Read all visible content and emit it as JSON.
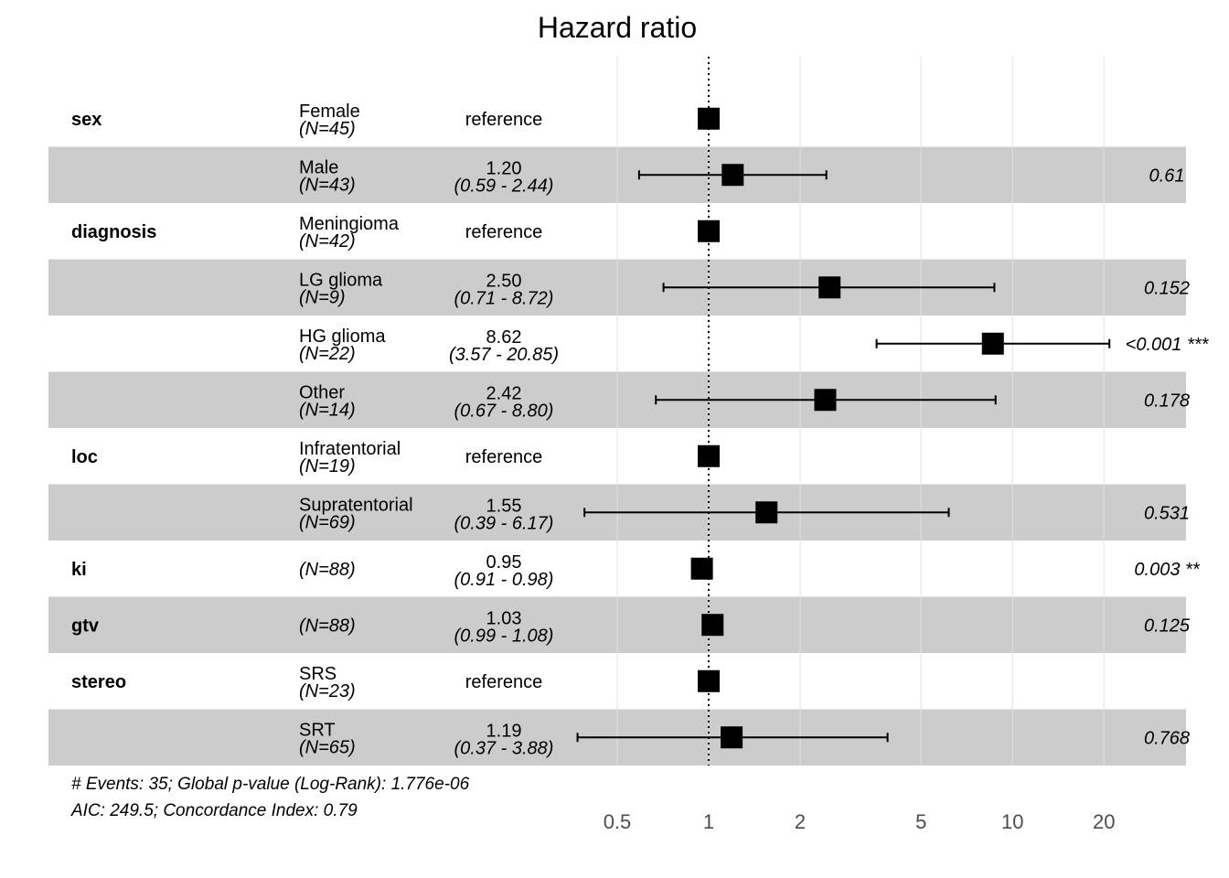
{
  "chart_data": {
    "type": "forest",
    "title": "Hazard ratio",
    "x_scale": "log",
    "xlim": [
      0.37,
      33
    ],
    "x_ticks": [
      0.5,
      1,
      2,
      5,
      10,
      20
    ],
    "x_tick_labels": [
      "0.5",
      "1",
      "2",
      "5",
      "10",
      "20"
    ],
    "reference_line": 1,
    "rows": [
      {
        "variable": "sex",
        "level": "Female",
        "n": "(N=45)",
        "hr": 1.0,
        "hr_text": "reference",
        "ci_text": "",
        "lower": null,
        "upper": null,
        "p_text": ""
      },
      {
        "variable": "",
        "level": "Male",
        "n": "(N=43)",
        "hr": 1.2,
        "hr_text": "1.20",
        "ci_text": "(0.59 -  2.44)",
        "lower": 0.59,
        "upper": 2.44,
        "p_text": "0.61"
      },
      {
        "variable": "diagnosis",
        "level": "Meningioma",
        "n": "(N=42)",
        "hr": 1.0,
        "hr_text": "reference",
        "ci_text": "",
        "lower": null,
        "upper": null,
        "p_text": ""
      },
      {
        "variable": "",
        "level": "LG glioma",
        "n": "(N=9)",
        "hr": 2.5,
        "hr_text": "2.50",
        "ci_text": "(0.71 -  8.72)",
        "lower": 0.71,
        "upper": 8.72,
        "p_text": "0.152"
      },
      {
        "variable": "",
        "level": "HG glioma",
        "n": "(N=22)",
        "hr": 8.62,
        "hr_text": "8.62",
        "ci_text": "(3.57 - 20.85)",
        "lower": 3.57,
        "upper": 20.85,
        "p_text": "<0.001 ***"
      },
      {
        "variable": "",
        "level": "Other",
        "n": "(N=14)",
        "hr": 2.42,
        "hr_text": "2.42",
        "ci_text": "(0.67 -  8.80)",
        "lower": 0.67,
        "upper": 8.8,
        "p_text": "0.178"
      },
      {
        "variable": "loc",
        "level": "Infratentorial",
        "n": "(N=19)",
        "hr": 1.0,
        "hr_text": "reference",
        "ci_text": "",
        "lower": null,
        "upper": null,
        "p_text": ""
      },
      {
        "variable": "",
        "level": "Supratentorial",
        "n": "(N=69)",
        "hr": 1.55,
        "hr_text": "1.55",
        "ci_text": "(0.39 -  6.17)",
        "lower": 0.39,
        "upper": 6.17,
        "p_text": "0.531"
      },
      {
        "variable": "ki",
        "level": "",
        "n": "(N=88)",
        "hr": 0.95,
        "hr_text": "0.95",
        "ci_text": "(0.91 -  0.98)",
        "lower": 0.91,
        "upper": 0.98,
        "p_text": "0.003 **"
      },
      {
        "variable": "gtv",
        "level": "",
        "n": "(N=88)",
        "hr": 1.03,
        "hr_text": "1.03",
        "ci_text": "(0.99 -  1.08)",
        "lower": 0.99,
        "upper": 1.08,
        "p_text": "0.125"
      },
      {
        "variable": "stereo",
        "level": "SRS",
        "n": "(N=23)",
        "hr": 1.0,
        "hr_text": "reference",
        "ci_text": "",
        "lower": null,
        "upper": null,
        "p_text": ""
      },
      {
        "variable": "",
        "level": "SRT",
        "n": "(N=65)",
        "hr": 1.19,
        "hr_text": "1.19",
        "ci_text": "(0.37 -  3.88)",
        "lower": 0.37,
        "upper": 3.88,
        "p_text": "0.768"
      }
    ],
    "footer": [
      "# Events: 35; Global p-value (Log-Rank): 1.776e-06",
      "AIC: 249.5; Concordance Index: 0.79"
    ]
  },
  "colors": {
    "stripe": "#cccccc",
    "gridline": "#e0e0e0",
    "mark": "#000000",
    "tick_text": "#4d4d4d"
  }
}
